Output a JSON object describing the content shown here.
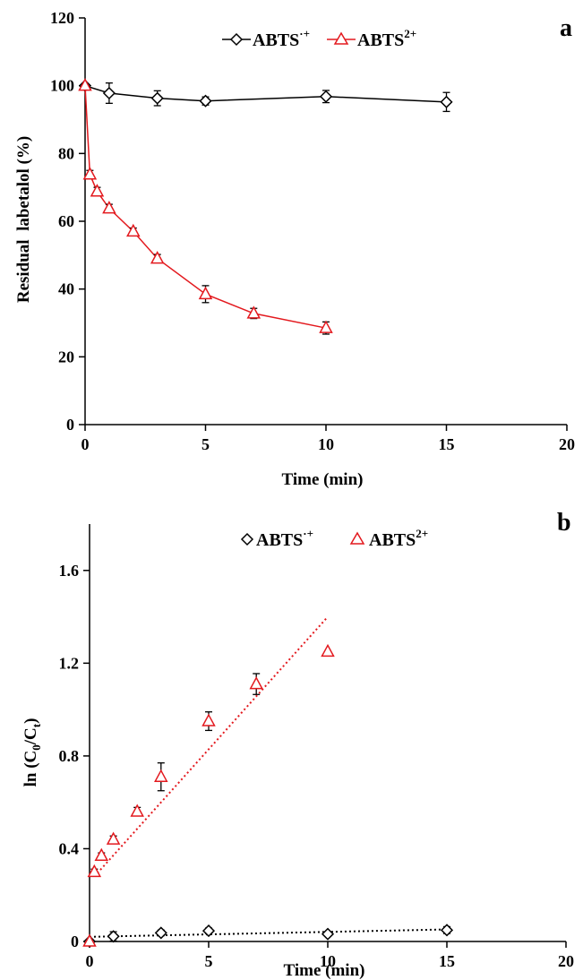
{
  "chart_data": [
    {
      "panel": "a",
      "type": "line",
      "xlabel": "Time (min)",
      "ylabel": "Residual  labetalol (%)",
      "xlim": [
        0,
        20
      ],
      "ylim": [
        0,
        120
      ],
      "xticks": [
        0,
        5,
        10,
        15,
        20
      ],
      "yticks": [
        0,
        20,
        40,
        60,
        80,
        100,
        120
      ],
      "legend_position": "top-center",
      "series": [
        {
          "name": "ABTS·+",
          "legend_base": "ABTS",
          "legend_sup": "·+",
          "color": "#000000",
          "marker": "diamond",
          "x": [
            0,
            1,
            3,
            5,
            10,
            15
          ],
          "y": [
            100,
            97.8,
            96.3,
            95.5,
            96.8,
            95.2
          ],
          "err": [
            0,
            3,
            2.2,
            1.2,
            1.8,
            2.8
          ]
        },
        {
          "name": "ABTS2+",
          "legend_base": "ABTS",
          "legend_sup": "2+",
          "color": "#e3191e",
          "marker": "triangle",
          "x": [
            0,
            0.2,
            0.5,
            1,
            2,
            3,
            5,
            7,
            10
          ],
          "y": [
            100,
            73.8,
            68.8,
            63.8,
            57,
            49,
            38.5,
            32.8,
            28.5
          ],
          "err": [
            0,
            1.2,
            1.2,
            1.2,
            1,
            1.2,
            2.5,
            1.5,
            1.8
          ]
        }
      ]
    },
    {
      "panel": "b",
      "type": "scatter",
      "xlabel": "Time (min)",
      "ylabel": "ln (C0/Ct)",
      "ylabel_base": "ln (C",
      "ylabel_sub1": "0",
      "ylabel_mid": "/C",
      "ylabel_sub2": "t",
      "ylabel_end": ")",
      "xlim": [
        0,
        20
      ],
      "ylim": [
        0,
        1.8
      ],
      "xticks": [
        0,
        5,
        10,
        15,
        20
      ],
      "yticks": [
        "0",
        "0.4",
        "0.8",
        "1.2",
        "1.6"
      ],
      "ytick_values": [
        0,
        0.4,
        0.8,
        1.2,
        1.6
      ],
      "legend_position": "top-center",
      "series": [
        {
          "name": "ABTS·+",
          "legend_base": "ABTS",
          "legend_sup": "·+",
          "color": "#000000",
          "marker": "diamond",
          "x": [
            0,
            1,
            3,
            5,
            10,
            15
          ],
          "y": [
            0,
            0.022,
            0.037,
            0.046,
            0.032,
            0.049
          ],
          "err": [
            0,
            0.02,
            0.012,
            0.012,
            0.008,
            0.015
          ],
          "trendline": {
            "x": [
              0,
              15
            ],
            "y": [
              0.02,
              0.052
            ],
            "style": "dotted"
          }
        },
        {
          "name": "ABTS2+",
          "legend_base": "ABTS",
          "legend_sup": "2+",
          "color": "#e3191e",
          "marker": "triangle",
          "x": [
            0,
            0.2,
            0.5,
            1,
            2,
            3,
            5,
            7,
            10
          ],
          "y": [
            0,
            0.3,
            0.37,
            0.44,
            0.56,
            0.71,
            0.95,
            1.11,
            1.25
          ],
          "err": [
            0,
            0.012,
            0.012,
            0.015,
            0.018,
            0.06,
            0.04,
            0.045,
            0
          ],
          "trendline": {
            "x": [
              0.2,
              10
            ],
            "y": [
              0.28,
              1.4
            ],
            "style": "dotted"
          }
        }
      ]
    }
  ]
}
